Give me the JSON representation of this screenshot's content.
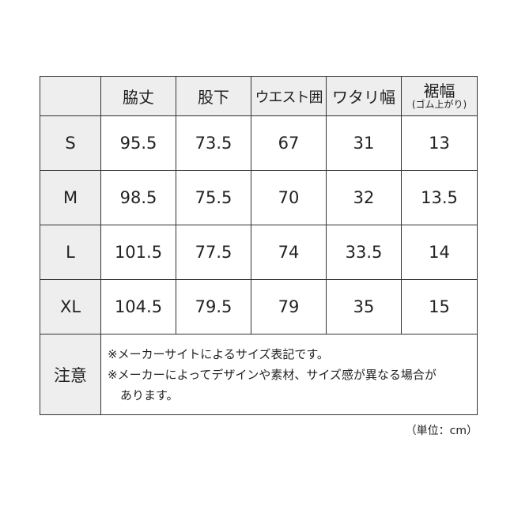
{
  "header": {
    "corner": "",
    "columns": [
      {
        "label": "脇丈"
      },
      {
        "label": "股下"
      },
      {
        "label": "ウエスト囲"
      },
      {
        "label": "ワタリ幅"
      },
      {
        "label": "裾幅",
        "sub": "(ゴム上がり)"
      }
    ]
  },
  "rows": [
    {
      "size": "S",
      "values": [
        "95.5",
        "73.5",
        "67",
        "31",
        "13"
      ]
    },
    {
      "size": "M",
      "values": [
        "98.5",
        "75.5",
        "70",
        "32",
        "13.5"
      ]
    },
    {
      "size": "L",
      "values": [
        "101.5",
        "77.5",
        "74",
        "33.5",
        "14"
      ]
    },
    {
      "size": "XL",
      "values": [
        "104.5",
        "79.5",
        "79",
        "35",
        "15"
      ]
    }
  ],
  "notes": {
    "label": "注意",
    "lines": [
      "※メーカーサイトによるサイズ表記です。",
      "※メーカーによってデザインや素材、サイズ感が異なる場合が",
      "あります。"
    ]
  },
  "unit": "（単位：cm）"
}
